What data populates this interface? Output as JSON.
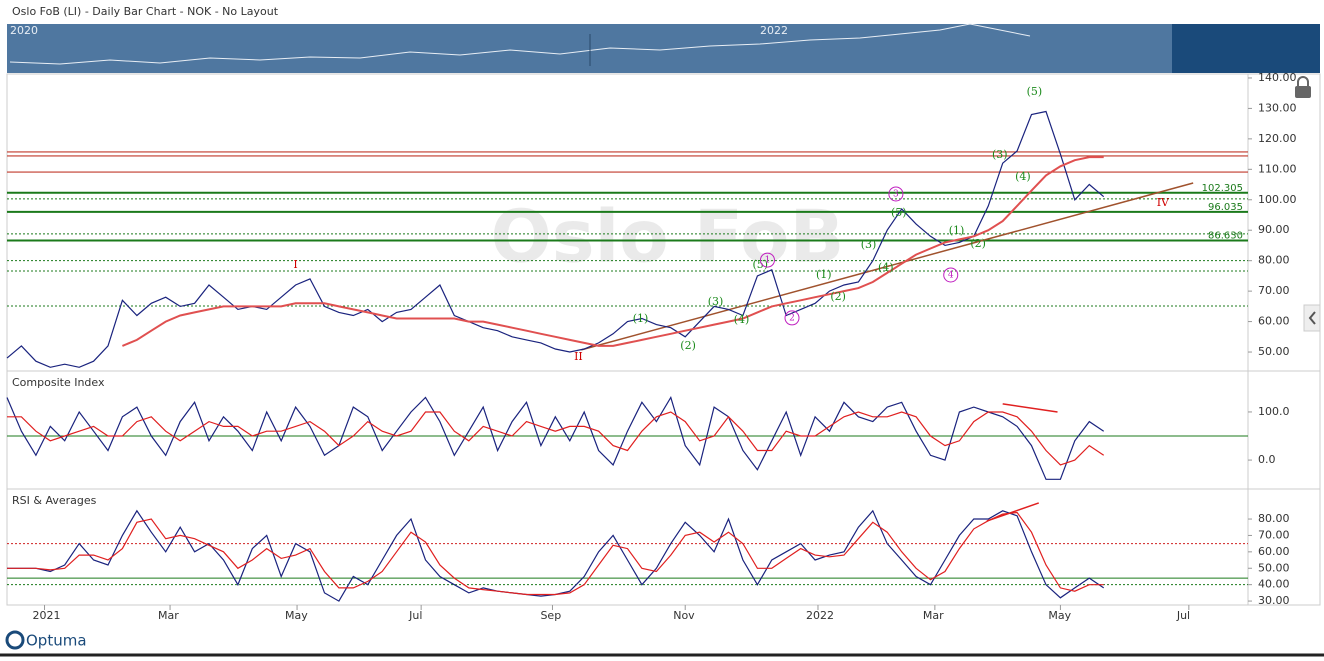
{
  "header": {
    "title": "Oslo FoB (LI) - Daily Bar Chart - NOK - No Layout"
  },
  "navigator": {
    "labels": [
      "2020",
      "2022"
    ]
  },
  "logo": "Optuma",
  "chart_data": [
    {
      "type": "line",
      "watermark": "Oslo FoB",
      "xlim": [
        0,
        86
      ],
      "xticks": [
        {
          "value": 2.6,
          "label": "2021"
        },
        {
          "value": 11.3,
          "label": "Mar"
        },
        {
          "value": 20.1,
          "label": "May"
        },
        {
          "value": 28.7,
          "label": "Jul"
        },
        {
          "value": 37.8,
          "label": "Sep"
        },
        {
          "value": 47.0,
          "label": "Nov"
        },
        {
          "value": 56.2,
          "label": "2022"
        },
        {
          "value": 64.3,
          "label": "Mar"
        },
        {
          "value": 73.0,
          "label": "May"
        },
        {
          "value": 81.9,
          "label": "Jul"
        }
      ],
      "x": [
        0,
        1,
        2,
        3,
        4,
        5,
        6,
        7,
        8,
        9,
        10,
        11,
        12,
        13,
        14,
        15,
        16,
        17,
        18,
        19,
        20,
        21,
        22,
        23,
        24,
        25,
        26,
        27,
        28,
        29,
        30,
        31,
        32,
        33,
        34,
        35,
        36,
        37,
        38,
        39,
        40,
        41,
        42,
        43,
        44,
        45,
        46,
        47,
        48,
        49,
        50,
        51,
        52,
        53,
        54,
        55,
        56,
        57,
        58,
        59,
        60,
        61,
        62,
        63,
        64,
        65,
        66,
        67,
        68,
        69,
        70,
        71,
        72,
        73,
        74,
        75,
        76
      ],
      "ylim": [
        44.1,
        141.3
      ],
      "yticks": [
        {
          "value": 140,
          "label": "140.00"
        },
        {
          "value": 130,
          "label": "130.00"
        },
        {
          "value": 120,
          "label": "120.00"
        },
        {
          "value": 110,
          "label": "110.00"
        },
        {
          "value": 100,
          "label": "100.00"
        },
        {
          "value": 90,
          "label": "90.00"
        },
        {
          "value": 80,
          "label": "80.00"
        },
        {
          "value": 70,
          "label": "70.00"
        },
        {
          "value": 60,
          "label": "60.00"
        },
        {
          "value": 50,
          "label": "50.00"
        }
      ],
      "series": [
        {
          "color": "#1a237e",
          "width": 1.2,
          "values": [
            48,
            52,
            47,
            45,
            46,
            45,
            47,
            52,
            67,
            62,
            66,
            68,
            65,
            66,
            72,
            68,
            64,
            65,
            64,
            68,
            72,
            74,
            65,
            63,
            62,
            64,
            60,
            63,
            64,
            68,
            72,
            62,
            60,
            58,
            57,
            55,
            54,
            53,
            51,
            50,
            51,
            53,
            56,
            60,
            61,
            59,
            58,
            55,
            60,
            65,
            64,
            62,
            75,
            77,
            62,
            64,
            66,
            70,
            72,
            73,
            80,
            90,
            97,
            92,
            88,
            85,
            86,
            88,
            98,
            112,
            116,
            128,
            129,
            115,
            100,
            105,
            101
          ]
        },
        {
          "color": "#e05050",
          "width": 2,
          "values": [
            null,
            null,
            null,
            null,
            null,
            null,
            null,
            null,
            52,
            54,
            57,
            60,
            62,
            63,
            64,
            65,
            65,
            65,
            65,
            65,
            66,
            66,
            66,
            65,
            64,
            63,
            62,
            61,
            61,
            61,
            61,
            61,
            60,
            60,
            59,
            58,
            57,
            56,
            55,
            54,
            53,
            52,
            52,
            53,
            54,
            55,
            56,
            57,
            58,
            59,
            60,
            61,
            63,
            65,
            66,
            67,
            68,
            69,
            70,
            71,
            73,
            76,
            79,
            82,
            84,
            86,
            87,
            88,
            90,
            93,
            98,
            103,
            108,
            111,
            113,
            114,
            114
          ]
        }
      ],
      "levels": [
        {
          "value": 115.7,
          "color": "#c0392b",
          "width": 1.2,
          "dash": false
        },
        {
          "value": 114.4,
          "color": "#c0392b",
          "width": 1.2,
          "dash": false
        },
        {
          "value": 109.1,
          "color": "#c0392b",
          "width": 1.2,
          "dash": false
        },
        {
          "value": 102.305,
          "color": "#1b7a1b",
          "width": 2,
          "dash": false,
          "labelled": true
        },
        {
          "value": 100.3,
          "color": "#1b7a1b",
          "width": 1,
          "dash": true
        },
        {
          "value": 96.035,
          "color": "#1b7a1b",
          "width": 2,
          "dash": false,
          "labelled": true
        },
        {
          "value": 88.8,
          "color": "#1b7a1b",
          "width": 1,
          "dash": true
        },
        {
          "value": 86.63,
          "label": "86.630",
          "color": "#1b7a1b",
          "width": 2,
          "dash": false
        },
        {
          "value": 80,
          "color": "#1b7a1b",
          "width": 1,
          "dash": true
        },
        {
          "value": 76.6,
          "color": "#1b7a1b",
          "width": 1,
          "dash": true
        },
        {
          "value": 65.1,
          "color": "#1b7a1b",
          "width": 1,
          "dash": true
        }
      ],
      "trendlines": [
        {
          "x": [
            39.8,
            82.2
          ],
          "y": [
            50.7,
            105.5
          ],
          "color": "#a0522d"
        }
      ],
      "annotations": [
        {
          "text": "I",
          "x": 20.0,
          "y": 78.6,
          "color": "#d00000"
        },
        {
          "text": "II",
          "x": 39.6,
          "y": 48.3,
          "color": "#d00000"
        },
        {
          "text": "IV",
          "x": 80.1,
          "y": 98.9,
          "color": "#d00000"
        },
        {
          "text": "(5)",
          "x": 71.2,
          "y": 135.4,
          "color": "#1b8a1b"
        },
        {
          "text": "(3)",
          "x": 68.8,
          "y": 114.7,
          "color": "#1b8a1b"
        },
        {
          "text": "(4)",
          "x": 70.4,
          "y": 107.5,
          "color": "#1b8a1b"
        },
        {
          "text": "(5)",
          "x": 61.8,
          "y": 95.6,
          "color": "#1b8a1b"
        },
        {
          "text": "(3)",
          "x": 59.7,
          "y": 85.1,
          "color": "#1b8a1b"
        },
        {
          "text": "(4)",
          "x": 60.9,
          "y": 77.6,
          "color": "#1b8a1b"
        },
        {
          "text": "(1)",
          "x": 65.8,
          "y": 89.7,
          "color": "#1b8a1b"
        },
        {
          "text": "(2)",
          "x": 67.3,
          "y": 85.5,
          "color": "#1b8a1b"
        },
        {
          "text": "(1)",
          "x": 43.9,
          "y": 60.8,
          "color": "#1b8a1b"
        },
        {
          "text": "(2)",
          "x": 47.2,
          "y": 52.0,
          "color": "#1b8a1b"
        },
        {
          "text": "(3)",
          "x": 49.1,
          "y": 66.4,
          "color": "#1b8a1b"
        },
        {
          "text": "(4)",
          "x": 50.9,
          "y": 60.5,
          "color": "#1b8a1b"
        },
        {
          "text": "(5)",
          "x": 52.2,
          "y": 78.6,
          "color": "#1b8a1b"
        },
        {
          "text": "(1)",
          "x": 56.6,
          "y": 75.3,
          "color": "#1b8a1b"
        },
        {
          "text": "(2)",
          "x": 57.6,
          "y": 68.1,
          "color": "#1b8a1b"
        },
        {
          "text": "3",
          "x": 61.6,
          "y": 101.9,
          "color": "#c020c0",
          "circled": true
        },
        {
          "text": "1",
          "x": 52.7,
          "y": 80.2,
          "color": "#c020c0",
          "circled": true
        },
        {
          "text": "2",
          "x": 54.4,
          "y": 61.2,
          "color": "#c020c0",
          "circled": true
        },
        {
          "text": "4",
          "x": 65.4,
          "y": 75.3,
          "color": "#c020c0",
          "circled": true
        }
      ]
    },
    {
      "type": "line",
      "title": "Composite Index",
      "ylim": [
        -58,
        183
      ],
      "yticks": [
        {
          "value": 100,
          "label": "100.0"
        },
        {
          "value": 0,
          "label": "0.0"
        }
      ],
      "series": [
        {
          "color": "#1a237e",
          "width": 1.2,
          "values": [
            130,
            60,
            10,
            70,
            40,
            100,
            60,
            20,
            90,
            110,
            50,
            10,
            80,
            120,
            40,
            90,
            60,
            20,
            100,
            40,
            110,
            70,
            10,
            30,
            110,
            90,
            20,
            60,
            100,
            130,
            80,
            10,
            60,
            110,
            20,
            80,
            120,
            30,
            90,
            40,
            100,
            20,
            -10,
            60,
            120,
            80,
            130,
            30,
            -10,
            110,
            90,
            20,
            -20,
            40,
            100,
            10,
            90,
            60,
            120,
            90,
            80,
            110,
            120,
            60,
            10,
            0,
            100,
            110,
            100,
            90,
            70,
            30,
            -40,
            -40,
            40,
            80,
            60
          ]
        },
        {
          "color": "#e02020",
          "width": 1.2,
          "values": [
            90,
            90,
            60,
            40,
            50,
            60,
            70,
            50,
            50,
            80,
            90,
            60,
            40,
            60,
            80,
            70,
            70,
            50,
            60,
            60,
            70,
            80,
            60,
            30,
            50,
            80,
            60,
            50,
            60,
            100,
            100,
            60,
            40,
            70,
            60,
            50,
            80,
            70,
            60,
            70,
            70,
            60,
            30,
            20,
            60,
            90,
            100,
            80,
            40,
            50,
            90,
            60,
            20,
            20,
            60,
            50,
            50,
            70,
            90,
            100,
            90,
            90,
            100,
            90,
            50,
            30,
            40,
            80,
            100,
            100,
            90,
            60,
            20,
            -10,
            0,
            30,
            10
          ]
        }
      ],
      "levels": [
        {
          "value": 50,
          "color": "#1b7a1b",
          "width": 1,
          "dash": false
        }
      ],
      "trendlines": [
        {
          "x": [
            69.0,
            72.8
          ],
          "y": [
            116.7,
            100
          ],
          "color": "#e02020"
        }
      ]
    },
    {
      "type": "line",
      "title": "RSI & Averages",
      "ylim": [
        27.6,
        97.7
      ],
      "yticks": [
        {
          "value": 80,
          "label": "80.00"
        },
        {
          "value": 70,
          "label": "70.00"
        },
        {
          "value": 60,
          "label": "60.00"
        },
        {
          "value": 50,
          "label": "50.00"
        },
        {
          "value": 40,
          "label": "40.00"
        },
        {
          "value": 30,
          "label": "30.00"
        }
      ],
      "series": [
        {
          "color": "#1a237e",
          "width": 1.2,
          "values": [
            50,
            50,
            50,
            48,
            52,
            65,
            55,
            52,
            70,
            85,
            72,
            60,
            75,
            60,
            65,
            55,
            40,
            62,
            70,
            45,
            65,
            60,
            35,
            30,
            45,
            40,
            55,
            70,
            80,
            55,
            45,
            40,
            35,
            38,
            36,
            35,
            34,
            33,
            34,
            36,
            45,
            60,
            70,
            55,
            40,
            50,
            65,
            78,
            70,
            60,
            80,
            55,
            40,
            55,
            60,
            65,
            55,
            58,
            60,
            75,
            85,
            65,
            55,
            45,
            40,
            55,
            70,
            80,
            80,
            85,
            82,
            60,
            40,
            32,
            38,
            44,
            38
          ]
        },
        {
          "color": "#e02020",
          "width": 1.2,
          "values": [
            50,
            50,
            50,
            49,
            50,
            58,
            58,
            55,
            62,
            78,
            80,
            68,
            70,
            68,
            64,
            60,
            50,
            55,
            62,
            56,
            58,
            62,
            48,
            38,
            38,
            42,
            48,
            60,
            72,
            66,
            52,
            44,
            38,
            37,
            36,
            35,
            34,
            34,
            34,
            35,
            40,
            52,
            64,
            62,
            50,
            48,
            58,
            70,
            72,
            66,
            72,
            65,
            50,
            50,
            56,
            62,
            58,
            57,
            58,
            68,
            78,
            72,
            60,
            50,
            43,
            48,
            62,
            74,
            79,
            83,
            84,
            72,
            52,
            38,
            36,
            40,
            40
          ]
        }
      ],
      "levels": [
        {
          "value": 65,
          "color": "#d02020",
          "width": 1,
          "dash": true
        },
        {
          "value": 44,
          "color": "#1b7a1b",
          "width": 1,
          "dash": false
        },
        {
          "value": 40,
          "color": "#1b7a1b",
          "width": 1,
          "dash": true
        }
      ],
      "trendlines": [
        {
          "x": [
            67.9,
            71.5
          ],
          "y": [
            78.8,
            89.8
          ],
          "color": "#e02020"
        }
      ]
    }
  ]
}
